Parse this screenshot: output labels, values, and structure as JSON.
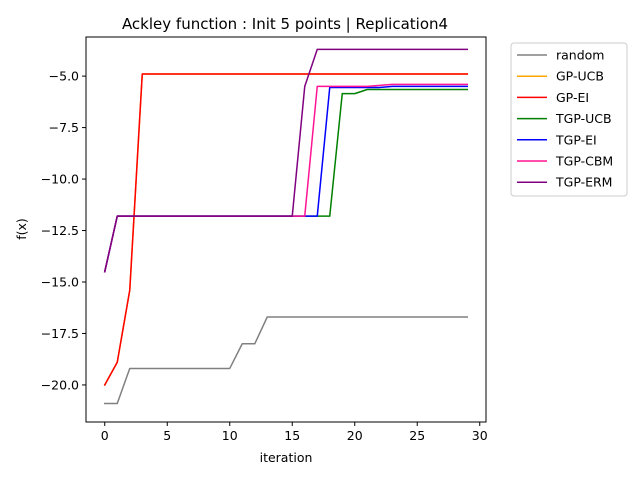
{
  "chart_data": {
    "type": "line",
    "title": "Ackley function : Init 5 points | Replication4",
    "xlabel": "iteration",
    "ylabel": "f(x)",
    "xlim": [
      -1.5,
      30.5
    ],
    "ylim": [
      -21.8,
      -3.1
    ],
    "xticks": [
      0,
      5,
      10,
      15,
      20,
      25,
      30
    ],
    "xtick_labels": [
      "0",
      "5",
      "10",
      "15",
      "20",
      "25",
      "30"
    ],
    "yticks": [
      -5.0,
      -7.5,
      -10.0,
      -12.5,
      -15.0,
      -17.5,
      -20.0
    ],
    "ytick_labels": [
      "−5.0",
      "−7.5",
      "−10.0",
      "−12.5",
      "−15.0",
      "−17.5",
      "−20.0"
    ],
    "legend_position": "outside-right",
    "x": [
      0,
      1,
      2,
      3,
      4,
      5,
      6,
      7,
      8,
      9,
      10,
      11,
      12,
      13,
      14,
      15,
      16,
      17,
      18,
      19,
      20,
      21,
      22,
      23,
      24,
      25,
      26,
      27,
      28,
      29
    ],
    "series": [
      {
        "name": "random",
        "color": "#808080",
        "values": [
          -20.9,
          -20.9,
          -19.2,
          -19.2,
          -19.2,
          -19.2,
          -19.2,
          -19.2,
          -19.2,
          -19.2,
          -19.2,
          -18.0,
          -18.0,
          -16.7,
          -16.7,
          -16.7,
          -16.7,
          -16.7,
          -16.7,
          -16.7,
          -16.7,
          -16.7,
          -16.7,
          -16.7,
          -16.7,
          -16.7,
          -16.7,
          -16.7,
          -16.7,
          -16.7
        ]
      },
      {
        "name": "GP-UCB",
        "color": "#ffa500",
        "values": [
          -20.0,
          -18.9,
          -15.4,
          -4.9,
          -4.9,
          -4.9,
          -4.9,
          -4.9,
          -4.9,
          -4.9,
          -4.9,
          -4.9,
          -4.9,
          -4.9,
          -4.9,
          -4.9,
          -4.9,
          -4.9,
          -4.9,
          -4.9,
          -4.9,
          -4.9,
          -4.9,
          -4.9,
          -4.9,
          -4.9,
          -4.9,
          -4.9,
          -4.9,
          -4.9
        ]
      },
      {
        "name": "GP-EI",
        "color": "#ff0000",
        "values": [
          -20.0,
          -18.9,
          -15.4,
          -4.9,
          -4.9,
          -4.9,
          -4.9,
          -4.9,
          -4.9,
          -4.9,
          -4.9,
          -4.9,
          -4.9,
          -4.9,
          -4.9,
          -4.9,
          -4.9,
          -4.9,
          -4.9,
          -4.9,
          -4.9,
          -4.9,
          -4.9,
          -4.9,
          -4.9,
          -4.9,
          -4.9,
          -4.9,
          -4.9,
          -4.9
        ]
      },
      {
        "name": "TGP-UCB",
        "color": "#008000",
        "values": [
          -14.5,
          -11.8,
          -11.8,
          -11.8,
          -11.8,
          -11.8,
          -11.8,
          -11.8,
          -11.8,
          -11.8,
          -11.8,
          -11.8,
          -11.8,
          -11.8,
          -11.8,
          -11.8,
          -11.8,
          -11.8,
          -11.8,
          -5.85,
          -5.85,
          -5.65,
          -5.65,
          -5.65,
          -5.65,
          -5.65,
          -5.65,
          -5.65,
          -5.65,
          -5.65
        ]
      },
      {
        "name": "TGP-EI",
        "color": "#0000ff",
        "values": [
          -14.5,
          -11.8,
          -11.8,
          -11.8,
          -11.8,
          -11.8,
          -11.8,
          -11.8,
          -11.8,
          -11.8,
          -11.8,
          -11.8,
          -11.8,
          -11.8,
          -11.8,
          -11.8,
          -11.8,
          -11.8,
          -5.55,
          -5.55,
          -5.55,
          -5.55,
          -5.55,
          -5.5,
          -5.5,
          -5.5,
          -5.5,
          -5.5,
          -5.5,
          -5.5
        ]
      },
      {
        "name": "TGP-CBM",
        "color": "#ff1493",
        "values": [
          -14.5,
          -11.8,
          -11.8,
          -11.8,
          -11.8,
          -11.8,
          -11.8,
          -11.8,
          -11.8,
          -11.8,
          -11.8,
          -11.8,
          -11.8,
          -11.8,
          -11.8,
          -11.8,
          -11.8,
          -5.5,
          -5.5,
          -5.5,
          -5.5,
          -5.5,
          -5.45,
          -5.4,
          -5.4,
          -5.4,
          -5.4,
          -5.4,
          -5.4,
          -5.4
        ]
      },
      {
        "name": "TGP-ERM",
        "color": "#800080",
        "values": [
          -14.5,
          -11.8,
          -11.8,
          -11.8,
          -11.8,
          -11.8,
          -11.8,
          -11.8,
          -11.8,
          -11.8,
          -11.8,
          -11.8,
          -11.8,
          -11.8,
          -11.8,
          -11.8,
          -5.5,
          -3.7,
          -3.7,
          -3.7,
          -3.7,
          -3.7,
          -3.7,
          -3.7,
          -3.7,
          -3.7,
          -3.7,
          -3.7,
          -3.7,
          -3.7
        ]
      }
    ]
  }
}
